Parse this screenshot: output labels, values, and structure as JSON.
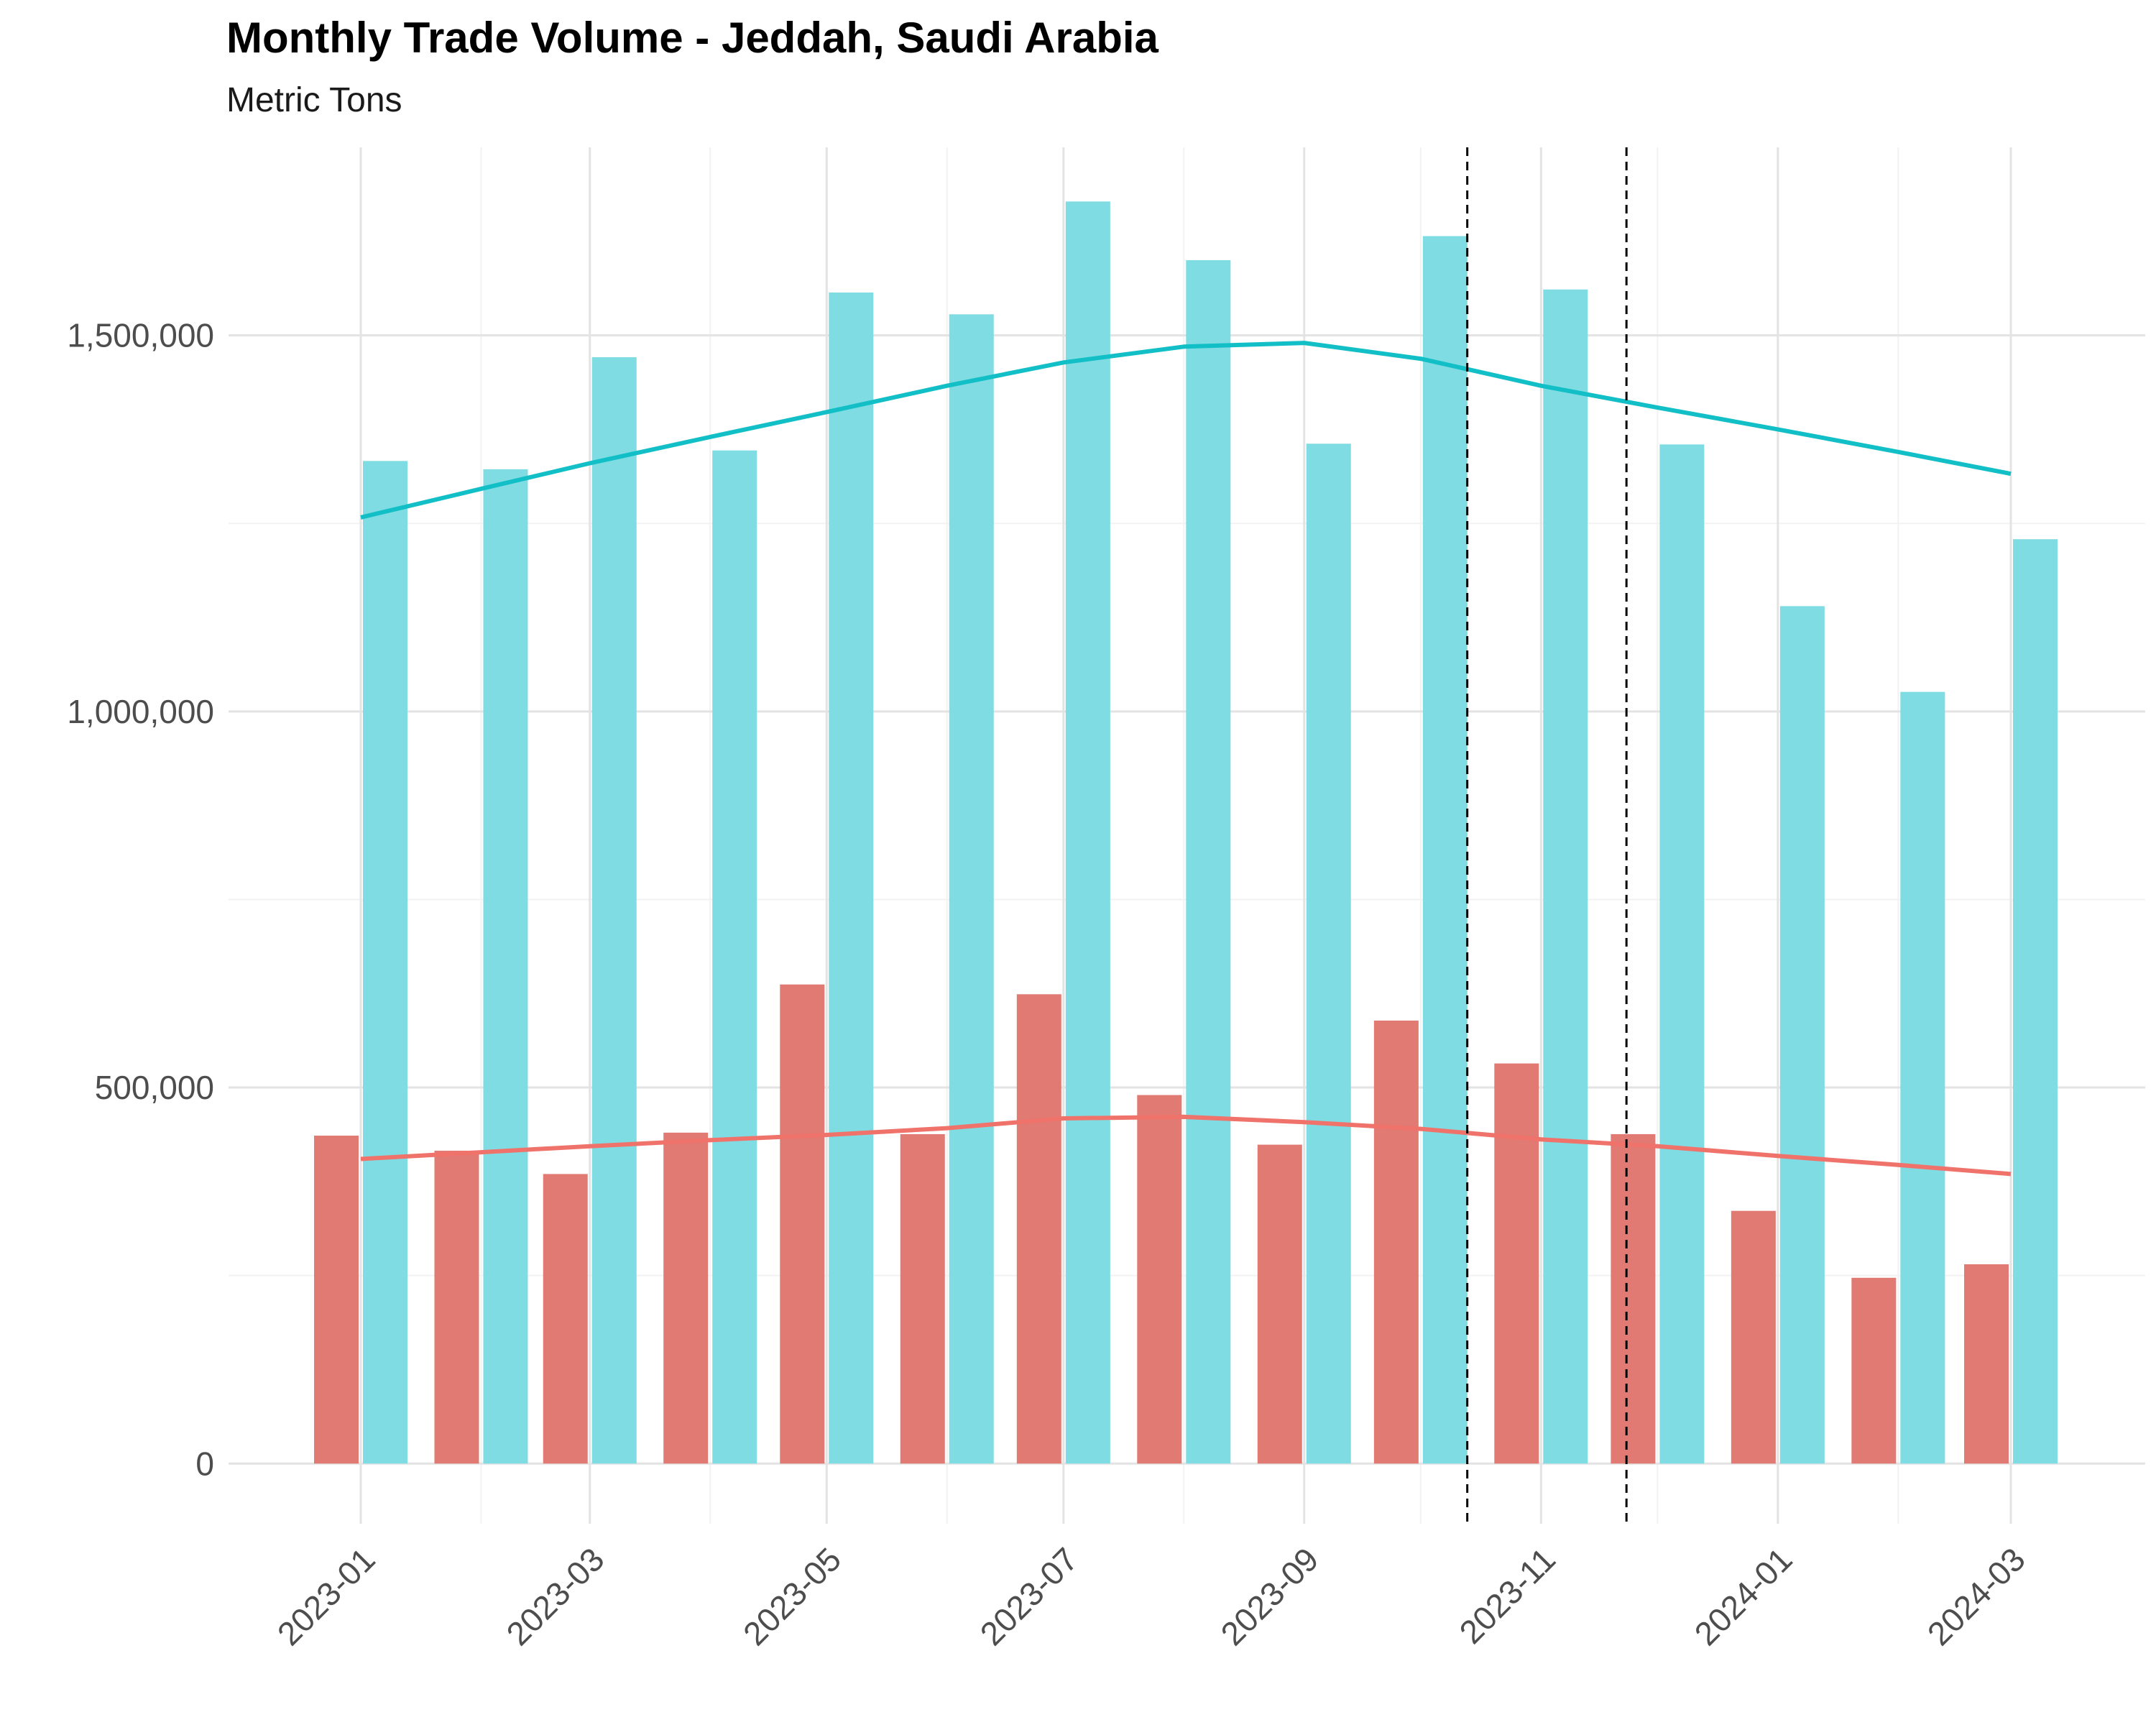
{
  "chart_data": {
    "type": "bar",
    "title": "Monthly Trade Volume - Jeddah, Saudi Arabia",
    "subtitle": "Metric Tons",
    "xlabel": "",
    "ylabel": "",
    "ylim": [
      -80000,
      1750000
    ],
    "x_tick_labels": [
      "2023-01",
      "2023-03",
      "2023-05",
      "2023-07",
      "2023-09",
      "2023-11",
      "2024-01",
      "2024-03"
    ],
    "y_ticks": [
      0,
      500000,
      1000000,
      1500000
    ],
    "y_tick_labels": [
      "0",
      "500,000",
      "1,000,000",
      "1,500,000"
    ],
    "categories": [
      "2023-01",
      "2023-02",
      "2023-03",
      "2023-04",
      "2023-05",
      "2023-06",
      "2023-07",
      "2023-08",
      "2023-09",
      "2023-10",
      "2023-11",
      "2023-12",
      "2024-01",
      "2024-02",
      "2024-03"
    ],
    "series": [
      {
        "color": "#E07A72",
        "trend_color": "#F0736B",
        "values": [
          436000,
          416000,
          385000,
          440000,
          637000,
          438000,
          624000,
          490000,
          424000,
          589000,
          532000,
          438000,
          336000,
          247000,
          265000
        ],
        "trend": [
          405000,
          414000,
          422000,
          430000,
          437000,
          446000,
          459000,
          461000,
          454000,
          445000,
          431000,
          422000,
          409000,
          397000,
          385000
        ]
      },
      {
        "color": "#7FDCE3",
        "trend_color": "#12BFC6",
        "values": [
          1333000,
          1322000,
          1471000,
          1347000,
          1557000,
          1528000,
          1678000,
          1600000,
          1356000,
          1632000,
          1561000,
          1355000,
          1140000,
          1026000,
          1229000
        ],
        "trend": [
          1258000,
          1296000,
          1330000,
          1365000,
          1398000,
          1433000,
          1464000,
          1485000,
          1490000,
          1469000,
          1433000,
          1404000,
          1375000,
          1345000,
          1316000
        ]
      }
    ],
    "vlines": [
      "2023-10-13",
      "2023-11-23"
    ],
    "vline_style": "dashed",
    "legend": "none",
    "grid": true
  }
}
